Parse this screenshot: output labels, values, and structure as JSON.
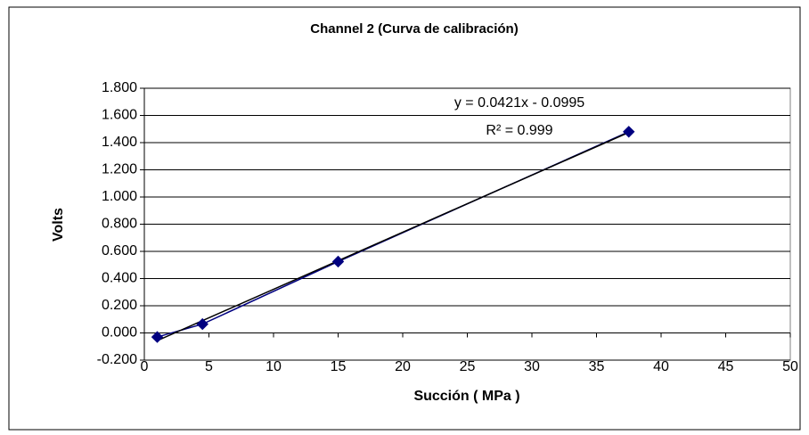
{
  "chart_data": {
    "type": "scatter",
    "title": "Channel 2 (Curva de calibración)",
    "x_label": "Succión ( MPa )",
    "y_label": "Volts",
    "series": [
      {
        "name": "Channel 2",
        "color": "#000080",
        "x": [
          1,
          4.5,
          15,
          37.5
        ],
        "values": [
          -0.03,
          0.065,
          0.525,
          1.48
        ]
      }
    ],
    "trendline_color": "#000000",
    "annotations": [
      "y = 0.0421x - 0.0995",
      "R² = 0.999"
    ],
    "xlim": [
      0,
      50
    ],
    "xticks": [
      0,
      5,
      10,
      15,
      20,
      25,
      30,
      35,
      40,
      45,
      50
    ],
    "ylim": [
      -0.2,
      1.8
    ],
    "yticks": [
      {
        "value": -0.2,
        "label": "-0.200"
      },
      {
        "value": 0,
        "label": "0.000"
      },
      {
        "value": 0.2,
        "label": "0.200"
      },
      {
        "value": 0.4,
        "label": "0.400"
      },
      {
        "value": 0.6,
        "label": "0.600"
      },
      {
        "value": 0.8,
        "label": "0.800"
      },
      {
        "value": 1.0,
        "label": "1.000"
      },
      {
        "value": 1.2,
        "label": "1.200"
      },
      {
        "value": 1.4,
        "label": "1.400"
      },
      {
        "value": 1.6,
        "label": "1.600"
      },
      {
        "value": 1.8,
        "label": "1.800"
      }
    ],
    "grid": true
  }
}
